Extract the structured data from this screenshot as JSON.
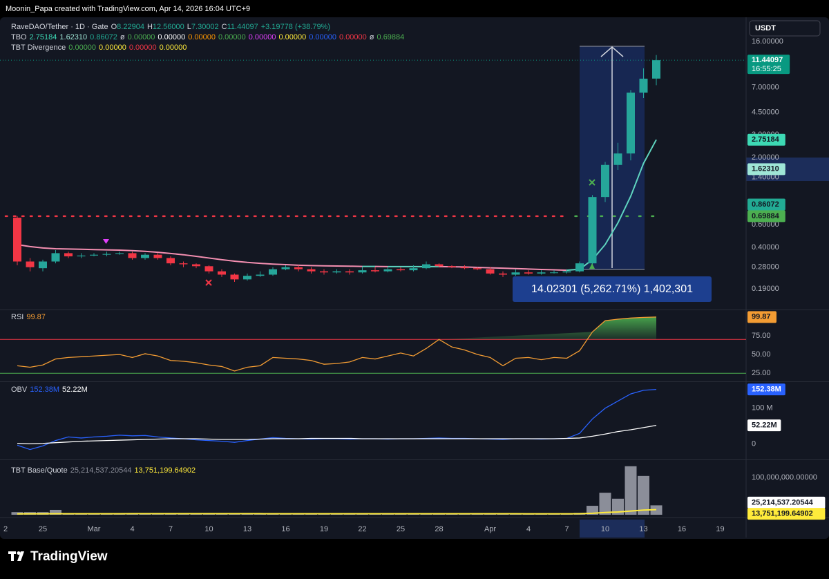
{
  "header": {
    "attribution": "Moonin_Papa created with TradingView.com, Apr 14, 2026 16:04 UTC+9",
    "currency": "USDT",
    "brand": "TradingView"
  },
  "legend": {
    "symbol": "RaveDAO/Tether · 1D · Gate",
    "ohlc": [
      {
        "key": "O",
        "value": "8.22904"
      },
      {
        "key": "H",
        "value": "12.56000"
      },
      {
        "key": "L",
        "value": "7.30002"
      },
      {
        "key": "C",
        "value": "11.44097"
      }
    ],
    "change": "+3.19778 (+38.79%)",
    "indicators": [
      {
        "name": "TBO",
        "items": [
          {
            "text": "2.75184",
            "color": "#3dd9b4"
          },
          {
            "text": "1.62310",
            "color": "#9fe6d6"
          },
          {
            "text": "0.86072",
            "color": "#22ab94"
          },
          {
            "text": "ø",
            "color": "#d1d4dc"
          },
          {
            "text": "0.00000",
            "color": "#4caf50"
          },
          {
            "text": "0.00000",
            "color": "#ffffff"
          },
          {
            "text": "0.00000",
            "color": "#ff9800"
          },
          {
            "text": "0.00000",
            "color": "#4caf50"
          },
          {
            "text": "0.00000",
            "color": "#e040fb"
          },
          {
            "text": "0.00000",
            "color": "#ffeb3b"
          },
          {
            "text": "0.00000",
            "color": "#2962ff"
          },
          {
            "text": "0.00000",
            "color": "#f23645"
          },
          {
            "text": "ø",
            "color": "#d1d4dc"
          },
          {
            "text": "0.69884",
            "color": "#4caf50"
          }
        ]
      },
      {
        "name": "TBT Divergence",
        "items": [
          {
            "text": "0.00000",
            "color": "#4caf50"
          },
          {
            "text": "0.00000",
            "color": "#ffeb3b"
          },
          {
            "text": "0.00000",
            "color": "#f23645"
          },
          {
            "text": "0.00000",
            "color": "#ffeb3b"
          }
        ]
      }
    ]
  },
  "chart_data": [
    {
      "type": "candlestick",
      "log_scale": true,
      "ylim": [
        0.1327,
        23.8
      ],
      "categories": [
        "2",
        null,
        null,
        "25",
        null,
        null,
        null,
        "Mar",
        null,
        null,
        "4",
        null,
        null,
        "7",
        null,
        null,
        "10",
        null,
        null,
        "13",
        null,
        null,
        "16",
        null,
        null,
        "19",
        null,
        null,
        "22",
        null,
        null,
        "25",
        null,
        null,
        "28",
        null,
        null,
        null,
        "Apr",
        null,
        null,
        "4",
        null,
        null,
        "7",
        null,
        null,
        "10",
        null,
        null,
        "13",
        null,
        null,
        "16",
        null,
        null,
        "19"
      ],
      "open": [
        null,
        0.68,
        0.31,
        0.275,
        0.31,
        0.36,
        0.34,
        0.345,
        0.35,
        0.355,
        0.36,
        0.33,
        0.35,
        0.33,
        0.3,
        0.295,
        0.285,
        0.26,
        0.245,
        0.225,
        0.24,
        0.245,
        0.27,
        0.28,
        0.27,
        0.26,
        0.255,
        0.26,
        0.255,
        0.265,
        0.26,
        0.27,
        0.265,
        0.275,
        0.295,
        0.285,
        0.28,
        0.275,
        0.27,
        0.25,
        0.245,
        0.255,
        0.25,
        0.255,
        0.255,
        0.26,
        0.3,
        0.985,
        1.75,
        2.15,
        6.4,
        8.22904,
        null,
        null,
        null,
        null,
        null
      ],
      "high": [
        null,
        0.7,
        0.33,
        0.32,
        0.38,
        0.37,
        0.36,
        0.36,
        0.37,
        0.37,
        0.37,
        0.36,
        0.36,
        0.34,
        0.31,
        0.3,
        0.29,
        0.27,
        0.25,
        0.25,
        0.26,
        0.28,
        0.29,
        0.29,
        0.28,
        0.27,
        0.27,
        0.27,
        0.28,
        0.28,
        0.28,
        0.28,
        0.29,
        0.31,
        0.3,
        0.29,
        0.29,
        0.28,
        0.28,
        0.26,
        0.27,
        0.265,
        0.265,
        0.265,
        0.27,
        0.31,
        1.02,
        1.85,
        2.6,
        6.7,
        9.9,
        12.56,
        null,
        null,
        null,
        null,
        null
      ],
      "low": [
        null,
        0.29,
        0.26,
        0.26,
        0.3,
        0.33,
        0.33,
        0.34,
        0.34,
        0.35,
        0.32,
        0.32,
        0.32,
        0.29,
        0.28,
        0.275,
        0.25,
        0.235,
        0.215,
        0.22,
        0.235,
        0.24,
        0.265,
        0.26,
        0.25,
        0.245,
        0.25,
        0.245,
        0.25,
        0.255,
        0.255,
        0.26,
        0.26,
        0.27,
        0.28,
        0.275,
        0.27,
        0.265,
        0.245,
        0.235,
        0.24,
        0.245,
        0.245,
        0.25,
        0.25,
        0.255,
        0.29,
        0.9,
        1.6,
        1.9,
        5.8,
        7.30002,
        null,
        null,
        null,
        null,
        null
      ],
      "close": [
        null,
        0.31,
        0.28,
        0.31,
        0.36,
        0.34,
        0.345,
        0.35,
        0.355,
        0.36,
        0.33,
        0.35,
        0.33,
        0.3,
        0.295,
        0.285,
        0.26,
        0.245,
        0.225,
        0.24,
        0.245,
        0.27,
        0.28,
        0.27,
        0.26,
        0.255,
        0.26,
        0.255,
        0.265,
        0.26,
        0.27,
        0.265,
        0.275,
        0.295,
        0.285,
        0.28,
        0.275,
        0.27,
        0.25,
        0.245,
        0.255,
        0.25,
        0.255,
        0.255,
        0.26,
        0.3,
        0.985,
        1.75,
        2.15,
        6.4,
        8.22,
        11.44097,
        null,
        null,
        null,
        null,
        null
      ],
      "colors": {
        "up": "#26a69a",
        "down": "#f23645"
      },
      "ma": {
        "color_up": "#5fd4c0",
        "color_down": "#f48fb1",
        "values": [
          null,
          0.42,
          0.405,
          0.395,
          0.39,
          0.388,
          0.386,
          0.384,
          0.382,
          0.38,
          0.377,
          0.372,
          0.366,
          0.358,
          0.35,
          0.34,
          0.33,
          0.32,
          0.312,
          0.305,
          0.3,
          0.296,
          0.293,
          0.29,
          0.288,
          0.287,
          0.286,
          0.285,
          0.284,
          0.284,
          0.283,
          0.283,
          0.283,
          0.283,
          0.283,
          0.282,
          0.281,
          0.279,
          0.277,
          0.275,
          0.273,
          0.271,
          0.269,
          0.267,
          0.265,
          0.27,
          0.32,
          0.42,
          0.62,
          1.0,
          1.8,
          2.75184,
          null,
          null,
          null,
          null,
          null
        ]
      },
      "yticks": [
        {
          "value": 16,
          "label": "16.00000"
        },
        {
          "value": 7,
          "label": "7.00000"
        },
        {
          "value": 4.5,
          "label": "4.50000"
        },
        {
          "value": 3,
          "label": "3.00000"
        },
        {
          "value": 2,
          "label": "2.00000"
        },
        {
          "value": 1.4,
          "label": "1.40000"
        },
        {
          "value": 0.6,
          "label": "0.60000"
        },
        {
          "value": 0.4,
          "label": "0.40000"
        },
        {
          "value": 0.28,
          "label": "0.28000"
        },
        {
          "value": 0.19,
          "label": "0.19000"
        }
      ],
      "price_tags": [
        {
          "value": 11.44097,
          "label": "11.44097",
          "sub": "16:55:25",
          "bg": "#089981",
          "fg": "#ffffff"
        },
        {
          "value": 2.75184,
          "label": "2.75184",
          "bg": "#3dd9b4",
          "fg": "#131722"
        },
        {
          "value": 1.6231,
          "label": "1.62310",
          "bg": "#9fe6d6",
          "fg": "#131722"
        },
        {
          "value": 0.86072,
          "label": "0.86072",
          "bg": "#22ab94",
          "fg": "#131722"
        },
        {
          "value": 0.69884,
          "label": "0.69884",
          "bg": "#4caf50",
          "fg": "#131722"
        }
      ],
      "level_colors": [
        "#f23645",
        "#4caf50"
      ],
      "annotation": "14.02301 (5,262.71%) 1,402,301"
    },
    {
      "type": "line",
      "title": "RSI",
      "color": "#f39c33",
      "last_label": "99.87",
      "tag_fg": "#131722",
      "ylim": [
        16,
        108
      ],
      "values": [
        null,
        35,
        33,
        36,
        44,
        46,
        47,
        48,
        49,
        50,
        46,
        51,
        48,
        42,
        41,
        39,
        36,
        34,
        28,
        33,
        35,
        46,
        45,
        44,
        42,
        37,
        38,
        40,
        46,
        44,
        48,
        52,
        48,
        58,
        70,
        60,
        56,
        50,
        46,
        35,
        45,
        46,
        43,
        46,
        45,
        55,
        80,
        95,
        97,
        98.5,
        99.4,
        99.87,
        null,
        null,
        null,
        null,
        null
      ],
      "yticks": [
        {
          "value": 75,
          "label": "75.00"
        },
        {
          "value": 50,
          "label": "50.00"
        },
        {
          "value": 25,
          "label": "25.00"
        }
      ],
      "bands": [
        {
          "value": 70,
          "color": "#f23645"
        },
        {
          "value": 25,
          "color": "#4caf50"
        }
      ],
      "overbought_fill": "#4caf50"
    },
    {
      "type": "line",
      "title": "OBV",
      "ylim": [
        -37,
        169
      ],
      "yticks": [
        {
          "value": 100,
          "label": "100 M"
        },
        0
      ],
      "series": [
        {
          "color": "#2962ff",
          "tag_fg": "#ffffff",
          "last_label": "152.38M",
          "values": [
            null,
            -3,
            -15,
            -5,
            10,
            20,
            17,
            20,
            22,
            25,
            23,
            24,
            20,
            17,
            15,
            12,
            10,
            8,
            5,
            10,
            14,
            18,
            16,
            15,
            14,
            15,
            15,
            14,
            15,
            15,
            14,
            15,
            15,
            16,
            17,
            16,
            16,
            15,
            14,
            13,
            15,
            15,
            14,
            15,
            16,
            30,
            70,
            100,
            120,
            140,
            150,
            152.38,
            null,
            null,
            null,
            null,
            null
          ]
        },
        {
          "color": "#ffffff",
          "tag_fg": "#131722",
          "last_label": "52.22M",
          "values": [
            null,
            2,
            1,
            2,
            4,
            6,
            8,
            9,
            10,
            11,
            12,
            13,
            14,
            15,
            15,
            15,
            14,
            13,
            13,
            13,
            14,
            15,
            15,
            15,
            16,
            16,
            16,
            16,
            15,
            15,
            15,
            15,
            15,
            15,
            15,
            15,
            15,
            15,
            15,
            15,
            15,
            15,
            15,
            15,
            16,
            17,
            22,
            28,
            35,
            40,
            46,
            52.22,
            null,
            null,
            null,
            null,
            null
          ]
        }
      ]
    },
    {
      "type": "bar",
      "title": "TBT Base/Quote",
      "ylim": [
        0,
        142600000
      ],
      "yticks": [
        {
          "value": 100000000,
          "label": "100,000,000.00000"
        }
      ],
      "bars": {
        "color": "#8b8e99",
        "tag_fg": "#131722",
        "tag_bg": "#ffffff",
        "label_color": "#8b8e99",
        "last_label": "25,214,537.20544",
        "values": [
          null,
          7000000,
          7000000,
          7000000,
          13000000,
          3000000,
          2500000,
          2000000,
          2000000,
          2500000,
          3000000,
          2000000,
          1500000,
          2000000,
          3000000,
          3500000,
          4000000,
          3000000,
          2500000,
          2000000,
          2000000,
          1500000,
          1500000,
          2000000,
          1500000,
          1500000,
          1500000,
          1500000,
          2000000,
          1500000,
          1500000,
          2000000,
          2500000,
          2000000,
          1500000,
          1500000,
          2000000,
          2500000,
          2000000,
          1500000,
          1500000,
          1500000,
          1500000,
          1500000,
          2000000,
          5000000,
          24000000,
          59000000,
          43000000,
          130000000,
          104000000,
          25214537.20544,
          null,
          null,
          null,
          null,
          null
        ]
      },
      "line": {
        "color": "#ffeb3b",
        "tag_fg": "#131722",
        "last_label": "13,751,199.64902",
        "values": [
          null,
          2400000,
          2500000,
          2600000,
          2700000,
          2800000,
          2800000,
          2800000,
          2800000,
          2800000,
          2900000,
          2900000,
          2900000,
          2900000,
          2900000,
          2900000,
          2900000,
          2900000,
          2900000,
          2900000,
          2900000,
          2800000,
          2800000,
          2800000,
          2800000,
          2800000,
          2800000,
          2800000,
          2800000,
          2800000,
          2800000,
          2700000,
          2700000,
          2700000,
          2700000,
          2700000,
          2700000,
          2700000,
          2700000,
          2700000,
          2700000,
          2600000,
          2600000,
          2600000,
          2600000,
          2800000,
          4000000,
          6000000,
          7500000,
          10000000,
          12500000,
          13751199.64902,
          null,
          null,
          null,
          null,
          null
        ]
      }
    }
  ]
}
